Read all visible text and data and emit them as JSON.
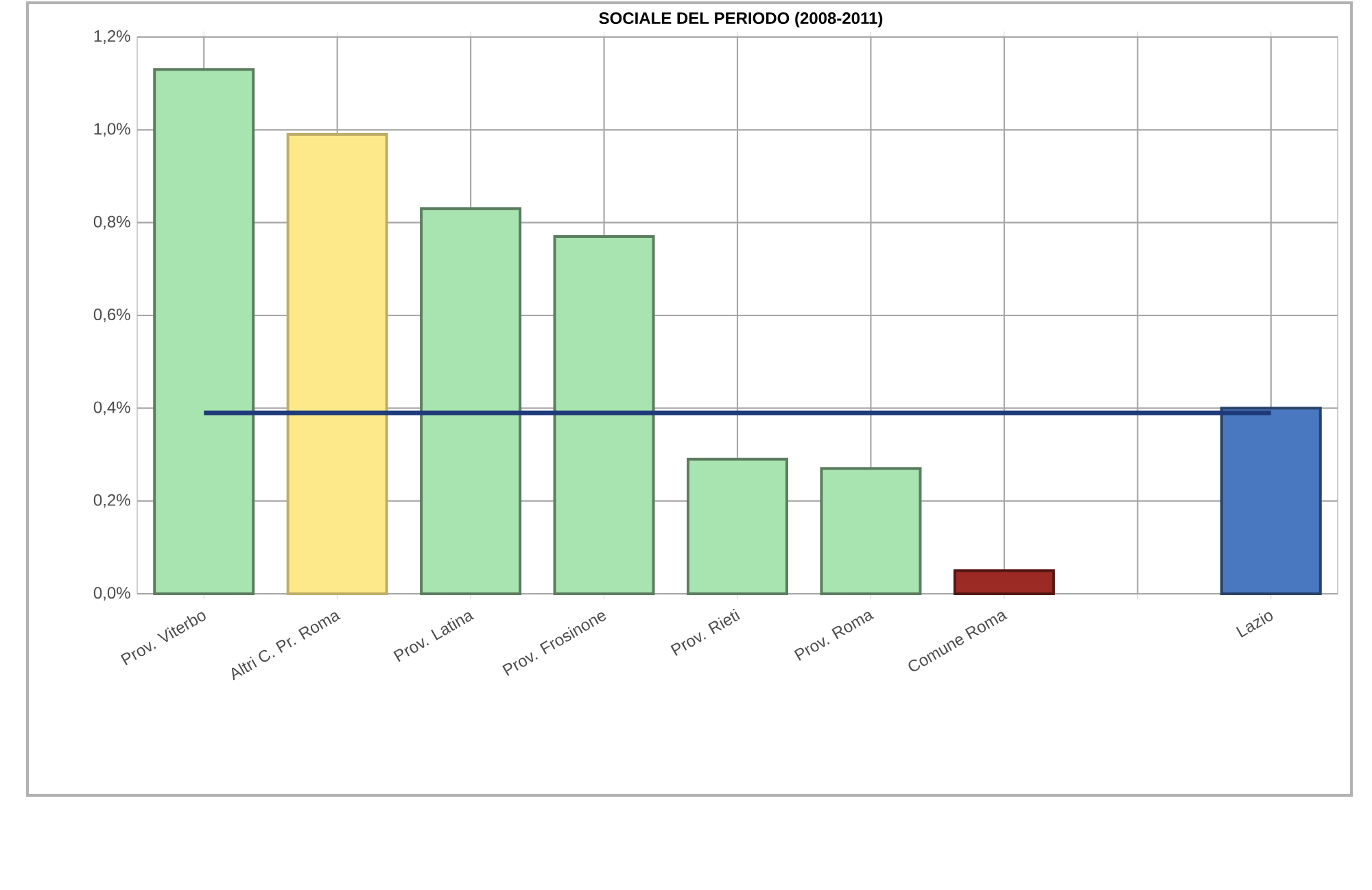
{
  "chart_data": {
    "type": "bar",
    "title": "SOCIALE DEL PERIODO (2008-2011)",
    "categories": [
      "Prov. Viterbo",
      "Altri C. Pr. Roma",
      "Prov. Latina",
      "Prov. Frosinone",
      "Prov. Rieti",
      "Prov. Roma",
      "Comune Roma",
      null,
      "Lazio"
    ],
    "values": [
      1.13,
      0.99,
      0.83,
      0.77,
      0.29,
      0.27,
      0.05,
      null,
      0.4
    ],
    "colors": [
      "#a8e4b0",
      "#fde98a",
      "#a8e4b0",
      "#a8e4b0",
      "#a8e4b0",
      "#a8e4b0",
      "#9b2a25",
      "#a8e4b0",
      "#4a78c0"
    ],
    "ylim": [
      0,
      1.2
    ],
    "yticks": [
      {
        "value": 0,
        "label": "0,0%"
      },
      {
        "value": 0.2,
        "label": "0,2%"
      },
      {
        "value": 0.4,
        "label": "0,4%"
      },
      {
        "value": 0.6,
        "label": "0,6%"
      },
      {
        "value": 0.8,
        "label": "0,8%"
      },
      {
        "value": 1.0,
        "label": "1,0%"
      },
      {
        "value": 1.2,
        "label": "1,2%"
      }
    ],
    "ref_lines": [
      {
        "axis": "y",
        "value": 0.39,
        "color": "#1f3a7a"
      }
    ],
    "grid": true
  }
}
